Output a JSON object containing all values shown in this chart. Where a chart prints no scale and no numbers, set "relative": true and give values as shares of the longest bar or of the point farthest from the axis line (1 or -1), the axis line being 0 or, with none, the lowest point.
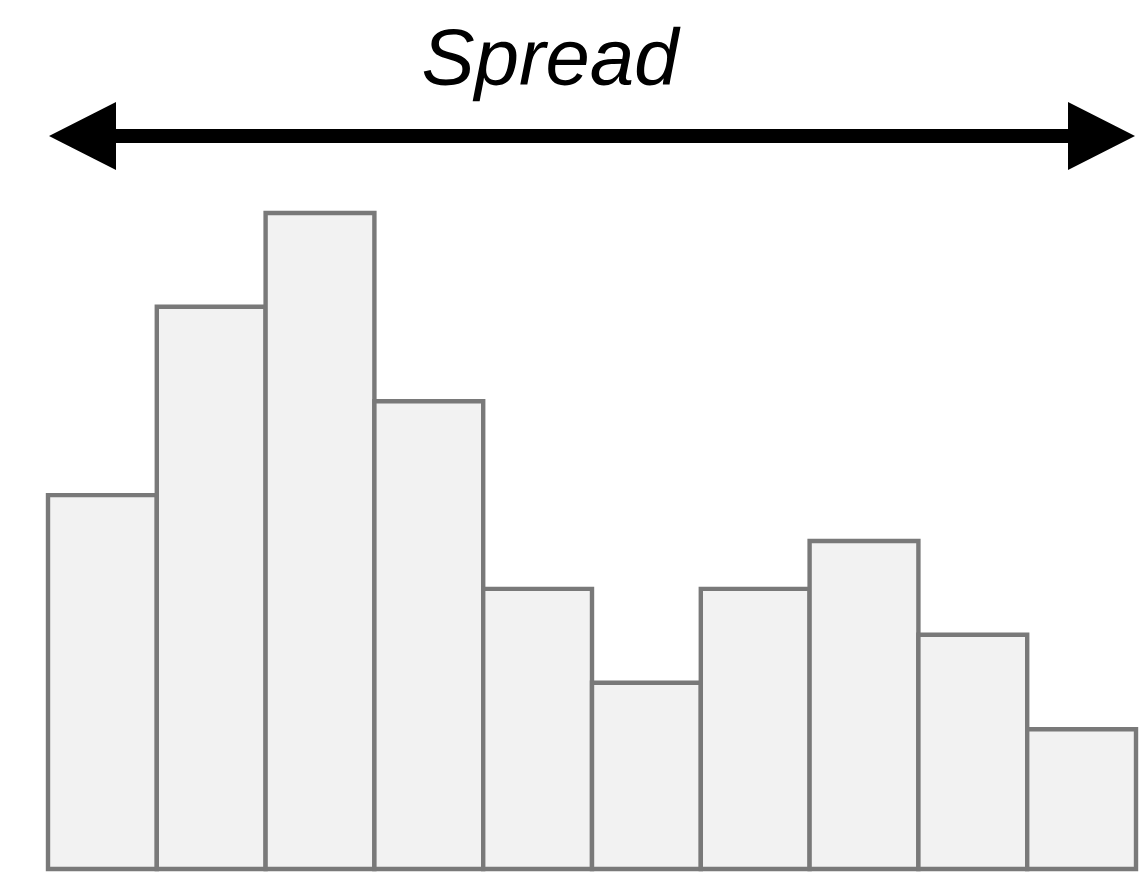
{
  "chart_data": {
    "type": "bar",
    "title": "Spread",
    "relative": true,
    "categories": [
      null,
      null,
      null,
      null,
      null,
      null,
      null,
      null,
      null,
      null
    ],
    "values": [
      0.57,
      0.857,
      1,
      0.713,
      0.427,
      0.284,
      0.427,
      0.5,
      0.357,
      0.213
    ],
    "color": "#f2f2f2"
  }
}
